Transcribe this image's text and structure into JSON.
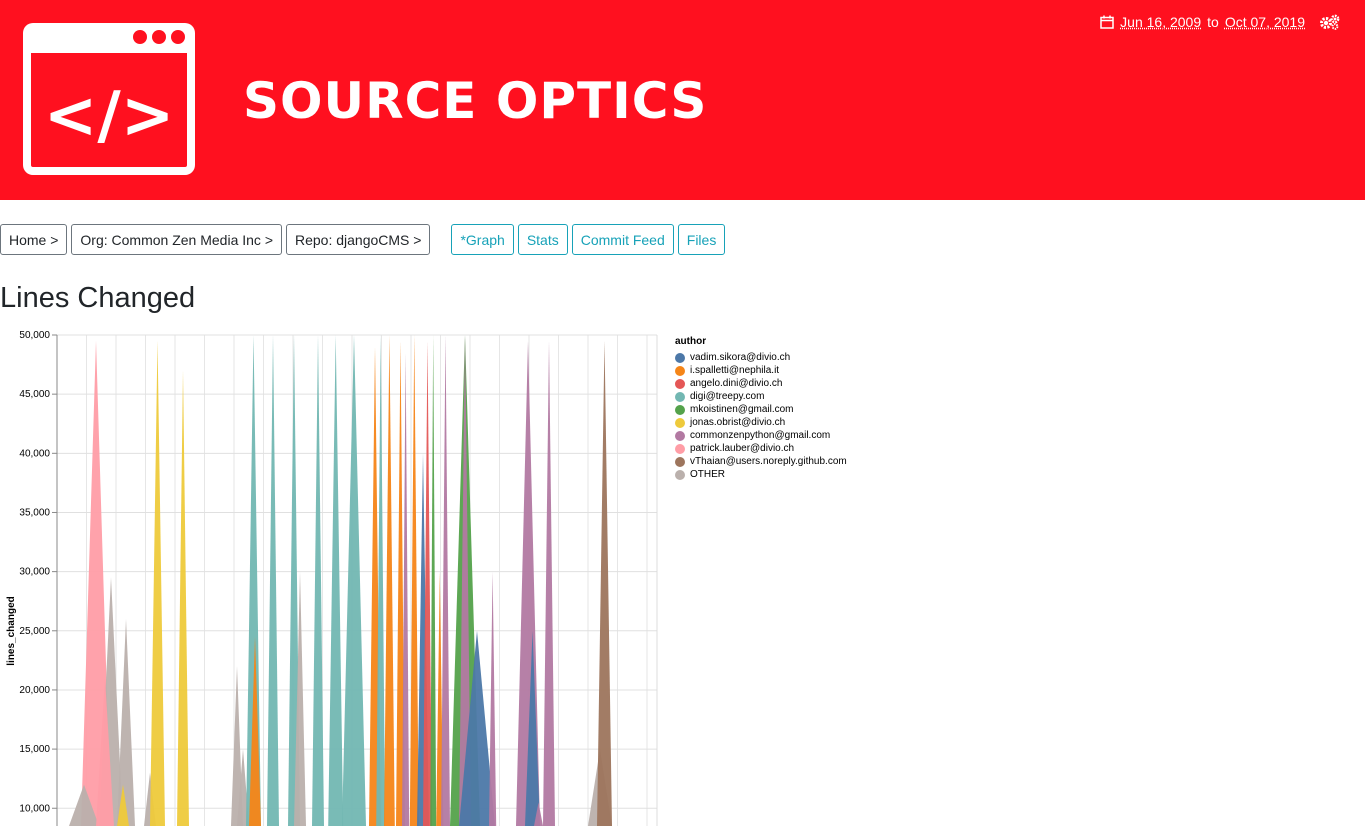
{
  "header": {
    "brand": "SOURCE OPTICS",
    "date_from": "Jun 16, 2009",
    "date_sep": "to",
    "date_to": "Oct 07, 2019",
    "accent": "#ff101f"
  },
  "breadcrumbs": [
    "Home >",
    "Org: Common Zen Media Inc >",
    "Repo: djangoCMS >"
  ],
  "tabs": [
    "*Graph",
    "Stats",
    "Commit Feed",
    "Files"
  ],
  "page_title": "Lines Changed",
  "chart_data": {
    "type": "area",
    "ylabel": "lines_changed",
    "ylim": [
      8500,
      50000
    ],
    "yticks": [
      10000,
      15000,
      20000,
      25000,
      30000,
      35000,
      40000,
      45000,
      50000
    ],
    "ytick_labels": [
      "10,000",
      "15,000",
      "20,000",
      "25,000",
      "30,000",
      "35,000",
      "40,000",
      "45,000",
      "50,000"
    ],
    "grid": true,
    "legend_position": "right",
    "legend_title": "author",
    "series": [
      {
        "name": "vadim.sikora@divio.ch",
        "color": "#4c78a8"
      },
      {
        "name": "i.spalletti@nephila.it",
        "color": "#f58518"
      },
      {
        "name": "angelo.dini@divio.ch",
        "color": "#e45756"
      },
      {
        "name": "digi@treepy.com",
        "color": "#72b7b2"
      },
      {
        "name": "mkoistinen@gmail.com",
        "color": "#54a24b"
      },
      {
        "name": "jonas.obrist@divio.ch",
        "color": "#eeca3b"
      },
      {
        "name": "commonzenpython@gmail.com",
        "color": "#b279a2"
      },
      {
        "name": "patrick.lauber@divio.ch",
        "color": "#ff9da6"
      },
      {
        "name": "vThaian@users.noreply.github.com",
        "color": "#9d755d"
      },
      {
        "name": "OTHER",
        "color": "#bab0ac"
      }
    ],
    "spikes": [
      {
        "s": 7,
        "x": 0.04,
        "w": 0.05,
        "y": 49500
      },
      {
        "s": 9,
        "x": 0.02,
        "w": 0.05,
        "y": 12000
      },
      {
        "s": 9,
        "x": 0.07,
        "w": 0.04,
        "y": 29500
      },
      {
        "s": 7,
        "x": 0.065,
        "w": 0.03,
        "y": 21000
      },
      {
        "s": 9,
        "x": 0.1,
        "w": 0.03,
        "y": 26000
      },
      {
        "s": 5,
        "x": 0.1,
        "w": 0.02,
        "y": 12000
      },
      {
        "s": 9,
        "x": 0.145,
        "w": 0.02,
        "y": 13000
      },
      {
        "s": 5,
        "x": 0.155,
        "w": 0.025,
        "y": 49500
      },
      {
        "s": 5,
        "x": 0.2,
        "w": 0.02,
        "y": 47000
      },
      {
        "s": 9,
        "x": 0.29,
        "w": 0.02,
        "y": 22000
      },
      {
        "s": 9,
        "x": 0.3,
        "w": 0.02,
        "y": 15000
      },
      {
        "s": 3,
        "x": 0.315,
        "w": 0.025,
        "y": 50000
      },
      {
        "s": 1,
        "x": 0.32,
        "w": 0.02,
        "y": 24500
      },
      {
        "s": 3,
        "x": 0.35,
        "w": 0.02,
        "y": 50000
      },
      {
        "s": 3,
        "x": 0.385,
        "w": 0.02,
        "y": 50000
      },
      {
        "s": 9,
        "x": 0.395,
        "w": 0.02,
        "y": 30000
      },
      {
        "s": 3,
        "x": 0.425,
        "w": 0.02,
        "y": 50000
      },
      {
        "s": 3,
        "x": 0.452,
        "w": 0.025,
        "y": 50000
      },
      {
        "s": 3,
        "x": 0.475,
        "w": 0.04,
        "y": 50000
      },
      {
        "s": 1,
        "x": 0.52,
        "w": 0.02,
        "y": 49000
      },
      {
        "s": 3,
        "x": 0.532,
        "w": 0.015,
        "y": 50000
      },
      {
        "s": 1,
        "x": 0.545,
        "w": 0.018,
        "y": 50000
      },
      {
        "s": 1,
        "x": 0.565,
        "w": 0.015,
        "y": 49500
      },
      {
        "s": 6,
        "x": 0.575,
        "w": 0.012,
        "y": 48500
      },
      {
        "s": 1,
        "x": 0.588,
        "w": 0.015,
        "y": 50000
      },
      {
        "s": 0,
        "x": 0.6,
        "w": 0.02,
        "y": 40000
      },
      {
        "s": 2,
        "x": 0.61,
        "w": 0.015,
        "y": 49500
      },
      {
        "s": 4,
        "x": 0.622,
        "w": 0.01,
        "y": 50000
      },
      {
        "s": 1,
        "x": 0.632,
        "w": 0.012,
        "y": 30000
      },
      {
        "s": 6,
        "x": 0.64,
        "w": 0.015,
        "y": 50000
      },
      {
        "s": 4,
        "x": 0.655,
        "w": 0.05,
        "y": 50000
      },
      {
        "s": 6,
        "x": 0.67,
        "w": 0.02,
        "y": 50000
      },
      {
        "s": 0,
        "x": 0.67,
        "w": 0.06,
        "y": 25000
      },
      {
        "s": 6,
        "x": 0.72,
        "w": 0.012,
        "y": 30000
      },
      {
        "s": 6,
        "x": 0.765,
        "w": 0.04,
        "y": 49500
      },
      {
        "s": 0,
        "x": 0.78,
        "w": 0.025,
        "y": 25000
      },
      {
        "s": 6,
        "x": 0.81,
        "w": 0.02,
        "y": 49500
      },
      {
        "s": 6,
        "x": 0.795,
        "w": 0.015,
        "y": 10500
      },
      {
        "s": 9,
        "x": 0.885,
        "w": 0.04,
        "y": 15000
      },
      {
        "s": 8,
        "x": 0.9,
        "w": 0.025,
        "y": 49500
      }
    ]
  }
}
